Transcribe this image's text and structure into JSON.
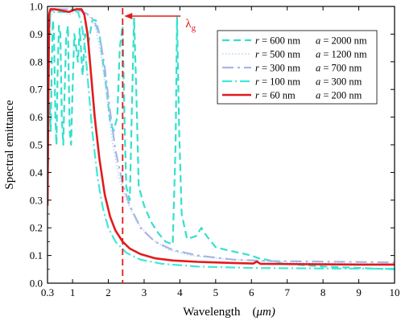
{
  "chart_data": {
    "type": "line",
    "xlabel_prefix": "Wavelength (",
    "xlabel_unit_mu": "μ",
    "xlabel_unit_rest": "m)",
    "ylabel": "Spectral emittance",
    "xlim": [
      0.3,
      10
    ],
    "ylim": [
      0.0,
      1.0
    ],
    "xticks": [
      0.3,
      1,
      2,
      3,
      4,
      5,
      6,
      7,
      8,
      9,
      10
    ],
    "xtick_labels": [
      "0.3",
      "1",
      "2",
      "3",
      "4",
      "5",
      "6",
      "7",
      "8",
      "9",
      "10"
    ],
    "yticks": [
      0.0,
      0.1,
      0.2,
      0.3,
      0.4,
      0.5,
      0.6,
      0.7,
      0.8,
      0.9,
      1.0
    ],
    "ytick_labels": [
      "0.0",
      "0.1",
      "0.2",
      "0.3",
      "0.4",
      "0.5",
      "0.6",
      "0.7",
      "0.8",
      "0.9",
      "1.0"
    ],
    "grid": false,
    "legend_position": "top-right",
    "annotation": {
      "label_main": "λ",
      "label_sub": "g",
      "x": 2.4,
      "color": "#e31a1c"
    },
    "series": [
      {
        "r_label": "r",
        "r_value": " = 600 nm",
        "a_label": "a",
        "a_value": " = 2000 nm",
        "color": "#34e0cc",
        "dash": "9,5",
        "width": 2.2,
        "points": [
          [
            0.3,
            0.3
          ],
          [
            0.33,
            0.6
          ],
          [
            0.36,
            0.65
          ],
          [
            0.39,
            0.55
          ],
          [
            0.42,
            0.8
          ],
          [
            0.45,
            0.95
          ],
          [
            0.48,
            0.9
          ],
          [
            0.52,
            0.6
          ],
          [
            0.55,
            0.5
          ],
          [
            0.58,
            0.75
          ],
          [
            0.62,
            0.93
          ],
          [
            0.66,
            0.9
          ],
          [
            0.7,
            0.6
          ],
          [
            0.74,
            0.5
          ],
          [
            0.78,
            0.7
          ],
          [
            0.82,
            0.88
          ],
          [
            0.87,
            0.93
          ],
          [
            0.92,
            0.55
          ],
          [
            0.96,
            0.5
          ],
          [
            1.0,
            0.7
          ],
          [
            1.05,
            0.9
          ],
          [
            1.1,
            0.85
          ],
          [
            1.15,
            0.8
          ],
          [
            1.2,
            0.92
          ],
          [
            1.28,
            0.75
          ],
          [
            1.35,
            0.9
          ],
          [
            1.45,
            0.87
          ],
          [
            1.55,
            0.95
          ],
          [
            1.65,
            0.95
          ],
          [
            1.75,
            0.9
          ],
          [
            1.85,
            0.8
          ],
          [
            1.95,
            0.7
          ],
          [
            2.05,
            0.58
          ],
          [
            2.15,
            0.55
          ],
          [
            2.25,
            0.6
          ],
          [
            2.32,
            0.85
          ],
          [
            2.4,
            0.93
          ],
          [
            2.45,
            0.6
          ],
          [
            2.5,
            0.35
          ],
          [
            2.6,
            0.3
          ],
          [
            2.68,
            0.75
          ],
          [
            2.72,
            0.96
          ],
          [
            2.78,
            0.7
          ],
          [
            2.85,
            0.35
          ],
          [
            3.0,
            0.28
          ],
          [
            3.2,
            0.22
          ],
          [
            3.4,
            0.18
          ],
          [
            3.6,
            0.15
          ],
          [
            3.8,
            0.14
          ],
          [
            3.88,
            0.5
          ],
          [
            3.92,
            0.96
          ],
          [
            3.98,
            0.55
          ],
          [
            4.05,
            0.25
          ],
          [
            4.2,
            0.16
          ],
          [
            4.45,
            0.17
          ],
          [
            4.6,
            0.2
          ],
          [
            4.75,
            0.17
          ],
          [
            5.0,
            0.13
          ],
          [
            5.3,
            0.12
          ],
          [
            6.0,
            0.1
          ],
          [
            6.2,
            0.09
          ],
          [
            7.0,
            0.07
          ],
          [
            8.0,
            0.06
          ],
          [
            9.0,
            0.055
          ],
          [
            10.0,
            0.05
          ]
        ]
      },
      {
        "r_label": "r",
        "r_value": " = 500 nm",
        "a_label": "a",
        "a_value": " = 1200 nm",
        "color": "#b8d4ef",
        "dash": "1.5,2.5",
        "width": 1.6,
        "points": [
          [
            0.3,
            0.3
          ],
          [
            0.34,
            0.85
          ],
          [
            0.38,
            0.97
          ],
          [
            0.5,
            0.98
          ],
          [
            0.7,
            0.98
          ],
          [
            0.9,
            0.97
          ],
          [
            1.1,
            0.98
          ],
          [
            1.3,
            0.98
          ],
          [
            1.5,
            0.96
          ],
          [
            1.65,
            0.92
          ],
          [
            1.8,
            0.82
          ],
          [
            1.95,
            0.68
          ],
          [
            2.1,
            0.52
          ],
          [
            2.3,
            0.38
          ],
          [
            2.5,
            0.3
          ],
          [
            2.8,
            0.22
          ],
          [
            3.2,
            0.16
          ],
          [
            3.7,
            0.12
          ],
          [
            4.3,
            0.1
          ],
          [
            5.0,
            0.09
          ],
          [
            6.0,
            0.08
          ],
          [
            7.0,
            0.075
          ],
          [
            8.0,
            0.072
          ],
          [
            9.0,
            0.07
          ],
          [
            10.0,
            0.07
          ]
        ]
      },
      {
        "r_label": "r",
        "r_value": " = 300 nm",
        "a_label": "a",
        "a_value": " = 700 nm",
        "color": "#a9b5e8",
        "dash": "14,5,3,5",
        "width": 2.2,
        "points": [
          [
            0.3,
            0.3
          ],
          [
            0.34,
            0.85
          ],
          [
            0.38,
            0.98
          ],
          [
            0.5,
            0.99
          ],
          [
            0.7,
            0.99
          ],
          [
            0.9,
            0.99
          ],
          [
            1.1,
            0.99
          ],
          [
            1.3,
            0.98
          ],
          [
            1.45,
            0.97
          ],
          [
            1.6,
            0.95
          ],
          [
            1.75,
            0.9
          ],
          [
            1.9,
            0.78
          ],
          [
            2.05,
            0.62
          ],
          [
            2.2,
            0.48
          ],
          [
            2.4,
            0.36
          ],
          [
            2.6,
            0.28
          ],
          [
            2.9,
            0.2
          ],
          [
            3.3,
            0.15
          ],
          [
            3.8,
            0.12
          ],
          [
            4.5,
            0.1
          ],
          [
            5.5,
            0.085
          ],
          [
            6.5,
            0.08
          ],
          [
            8.0,
            0.078
          ],
          [
            10.0,
            0.075
          ]
        ]
      },
      {
        "r_label": "r",
        "r_value": " = 100 nm",
        "a_label": "a",
        "a_value": " = 300 nm",
        "color": "#40e8d8",
        "dash": "12,4,2,4",
        "width": 2.2,
        "points": [
          [
            0.3,
            0.3
          ],
          [
            0.34,
            0.82
          ],
          [
            0.37,
            0.97
          ],
          [
            0.45,
            0.98
          ],
          [
            0.6,
            0.98
          ],
          [
            0.8,
            0.98
          ],
          [
            1.0,
            0.99
          ],
          [
            1.15,
            0.98
          ],
          [
            1.25,
            0.94
          ],
          [
            1.35,
            0.85
          ],
          [
            1.45,
            0.7
          ],
          [
            1.55,
            0.55
          ],
          [
            1.7,
            0.38
          ],
          [
            1.85,
            0.27
          ],
          [
            2.0,
            0.2
          ],
          [
            2.2,
            0.15
          ],
          [
            2.5,
            0.11
          ],
          [
            2.9,
            0.085
          ],
          [
            3.5,
            0.07
          ],
          [
            4.5,
            0.06
          ],
          [
            6.0,
            0.055
          ],
          [
            8.0,
            0.053
          ],
          [
            10.0,
            0.052
          ]
        ]
      },
      {
        "r_label": "r",
        "r_value": " = 60 nm",
        "a_label": "a",
        "a_value": " = 200 nm",
        "color": "#e31a1c",
        "dash": "",
        "width": 2.6,
        "points": [
          [
            0.3,
            0.28
          ],
          [
            0.32,
            0.6
          ],
          [
            0.345,
            0.97
          ],
          [
            0.38,
            0.99
          ],
          [
            0.5,
            0.99
          ],
          [
            0.7,
            0.985
          ],
          [
            0.9,
            0.98
          ],
          [
            1.1,
            0.99
          ],
          [
            1.25,
            0.99
          ],
          [
            1.33,
            0.97
          ],
          [
            1.42,
            0.9
          ],
          [
            1.52,
            0.75
          ],
          [
            1.62,
            0.6
          ],
          [
            1.75,
            0.45
          ],
          [
            1.9,
            0.32
          ],
          [
            2.05,
            0.24
          ],
          [
            2.2,
            0.19
          ],
          [
            2.4,
            0.15
          ],
          [
            2.6,
            0.125
          ],
          [
            2.9,
            0.105
          ],
          [
            3.3,
            0.09
          ],
          [
            3.8,
            0.082
          ],
          [
            4.5,
            0.077
          ],
          [
            5.5,
            0.073
          ],
          [
            6.05,
            0.071
          ],
          [
            6.15,
            0.078
          ],
          [
            6.25,
            0.07
          ],
          [
            7.0,
            0.069
          ],
          [
            8.0,
            0.068
          ],
          [
            9.0,
            0.067
          ],
          [
            10.0,
            0.067
          ]
        ]
      }
    ]
  }
}
